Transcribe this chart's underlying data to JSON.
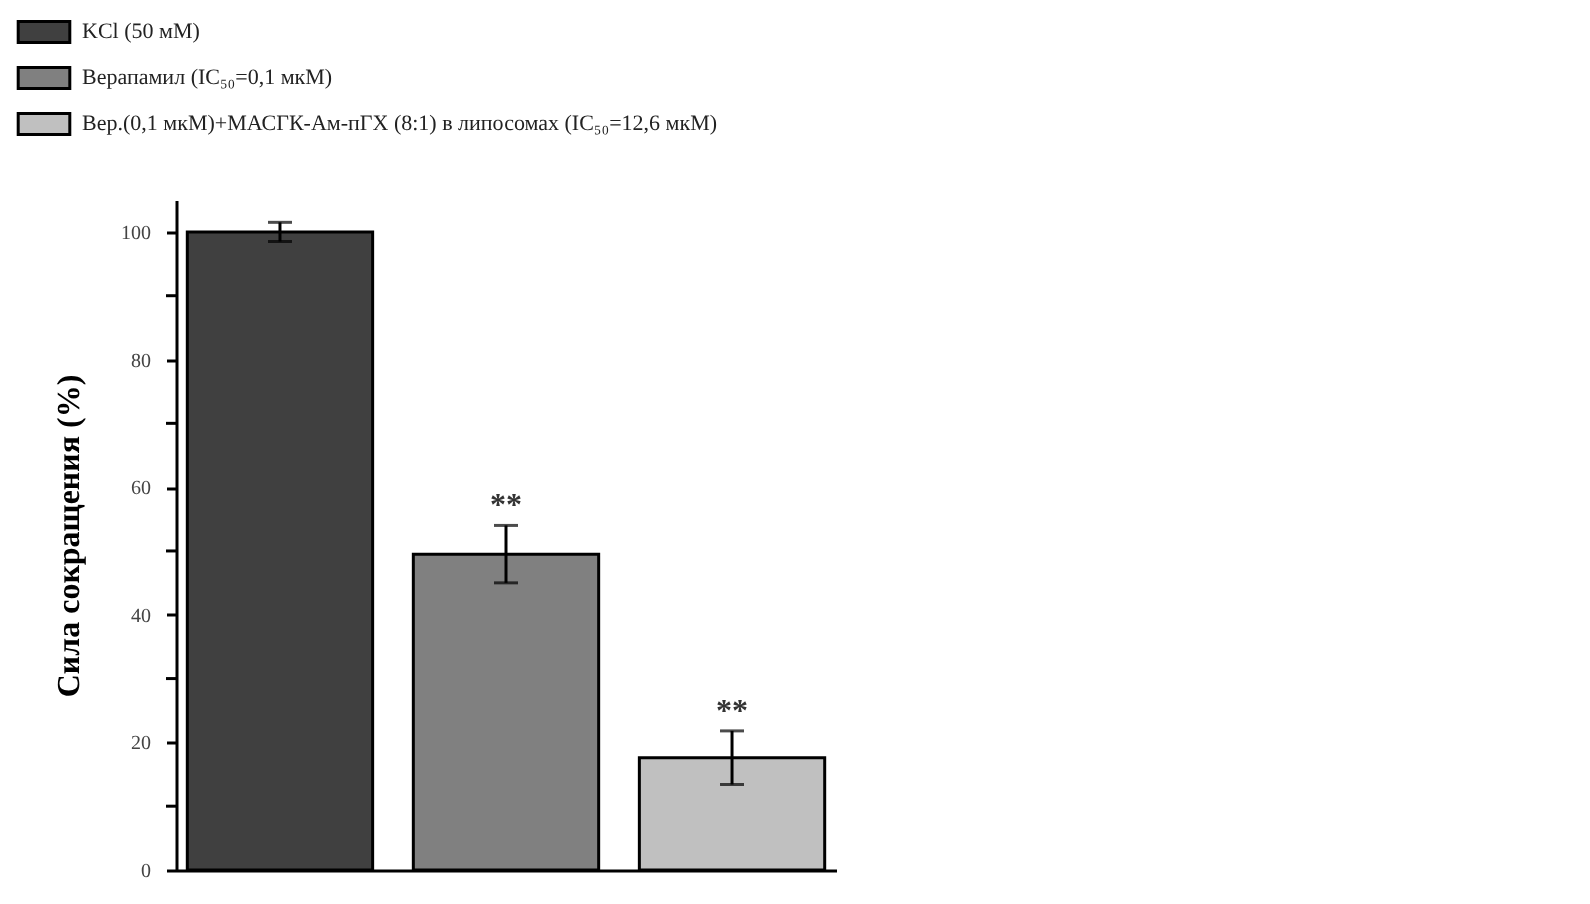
{
  "chart_data": {
    "type": "bar",
    "ylabel": "Сила сокращения (%)",
    "categories": [
      null,
      null,
      null
    ],
    "series": [
      {
        "name": "KCl (50 мМ)",
        "color": "#404040",
        "values": [
          100,
          null,
          null
        ],
        "errors": [
          1.5,
          null,
          null
        ]
      },
      {
        "name": "Верапамил (IC₅₀=0,1 мкМ)",
        "color": "#808080",
        "values": [
          null,
          49.5,
          null
        ],
        "errors": [
          null,
          4.5,
          null
        ]
      },
      {
        "name": "Вер.(0,1 мкМ)+МАСГК-Ам-пГХ (8:1) в липосомах (IC₅₀=12,6 мкМ)",
        "color": "#c0c0c0",
        "values": [
          null,
          null,
          17.6
        ],
        "errors": [
          null,
          null,
          4.2
        ]
      }
    ],
    "annotations": [
      "**",
      "**"
    ],
    "ylim": [
      0,
      105
    ],
    "yticks": [
      0,
      {
        "value": 10,
        "label": null
      },
      20,
      {
        "value": 30,
        "label": null
      },
      40,
      {
        "value": 50,
        "label": null
      },
      60,
      {
        "value": 70,
        "label": null
      },
      80,
      {
        "value": 90,
        "label": null
      },
      100
    ],
    "legend": "top left",
    "tick_labels": "y",
    "grid": false
  }
}
